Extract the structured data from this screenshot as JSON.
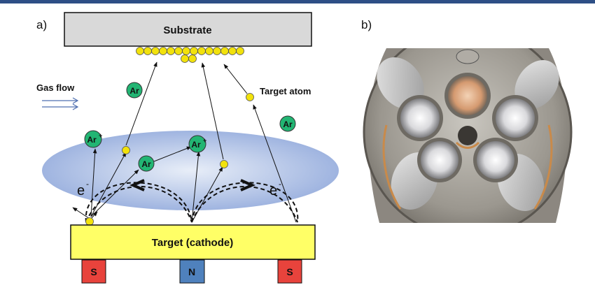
{
  "panels": {
    "a_label": "a)",
    "b_label": "b)"
  },
  "diagram": {
    "substrate_label": "Substrate",
    "target_label": "Target (cathode)",
    "gas_flow_label": "Gas flow",
    "target_atom_label": "Target atom",
    "argon_label": "Ar",
    "argon_ion_label": "Ar",
    "ion_charge": "+",
    "electron_label": "e",
    "electron_charge": "-",
    "magnet_left": "S",
    "magnet_center": "N",
    "magnet_right": "S"
  },
  "colors": {
    "header_bar": "#2e4f86",
    "substrate_fill": "#d9d9d9",
    "target_fill": "#ffff66",
    "argon_fill": "#22b573",
    "atom_fill": "#f2e20c",
    "plasma_fill": "#9fb4e0",
    "magnet_s": "#e8433c",
    "magnet_n": "#4f81bd"
  }
}
